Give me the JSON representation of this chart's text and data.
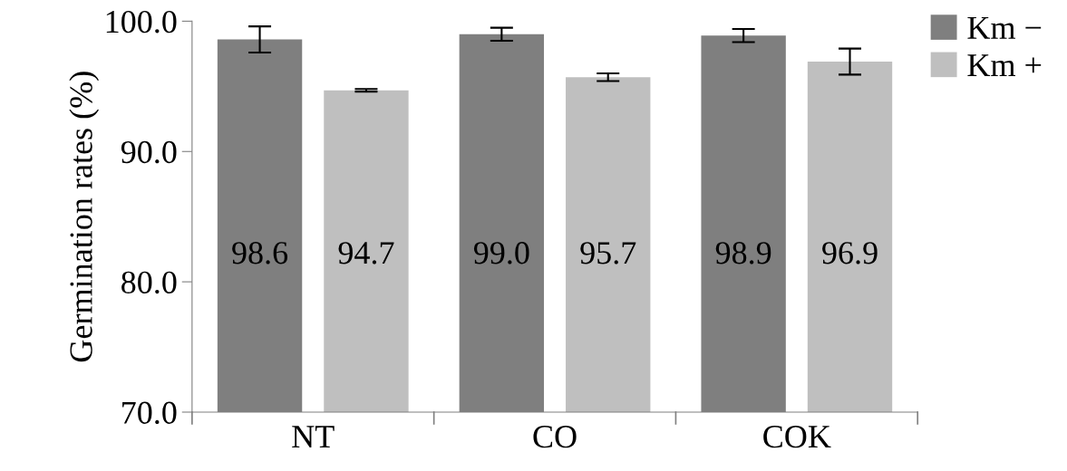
{
  "chart_data": {
    "type": "bar",
    "ylabel": "Germination rates (%)",
    "categories": [
      "NT",
      "CO",
      "COK"
    ],
    "series": [
      {
        "name": "Km −",
        "color": "#7f7f7f",
        "values": [
          98.6,
          99.0,
          98.9
        ],
        "value_labels": [
          "98.6",
          "99.0",
          "98.9"
        ],
        "errors": [
          1.0,
          0.5,
          0.5
        ]
      },
      {
        "name": "Km +",
        "color": "#bfbfbf",
        "values": [
          94.7,
          95.7,
          96.9
        ],
        "value_labels": [
          "94.7",
          "95.7",
          "96.9"
        ],
        "errors": [
          0.1,
          0.3,
          1.0
        ]
      }
    ],
    "ylim": [
      70,
      100
    ],
    "yticks": [
      {
        "value": 70,
        "label": "70.0"
      },
      {
        "value": 80,
        "label": "80.0"
      },
      {
        "value": 90,
        "label": "90.0"
      },
      {
        "value": 100,
        "label": "100.0"
      }
    ],
    "legend": "top right",
    "grid": false
  }
}
